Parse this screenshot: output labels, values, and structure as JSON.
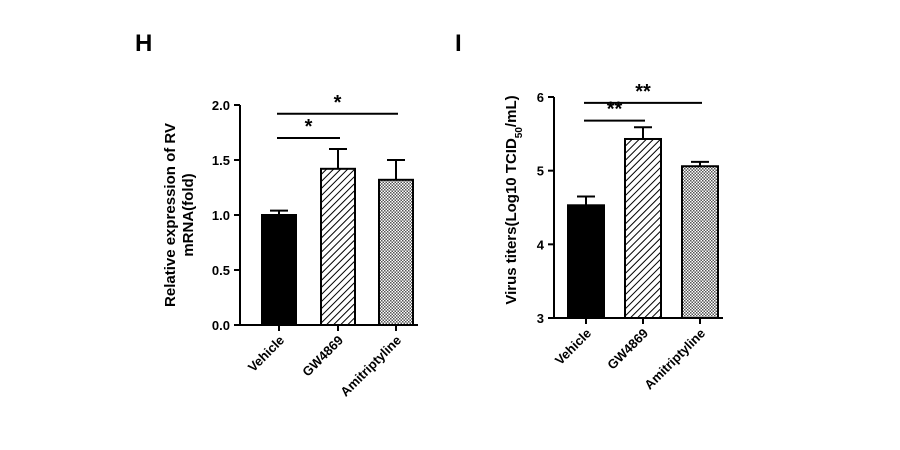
{
  "chart_data": [
    {
      "panel": "H",
      "type": "bar",
      "categories": [
        "Vehicle",
        "GW4869",
        "Amitriptyline"
      ],
      "values": [
        1.0,
        1.42,
        1.32
      ],
      "errors": [
        0.04,
        0.18,
        0.18
      ],
      "ylabel_lines": [
        "Relative expression of RV",
        "mRNA(fold)"
      ],
      "ylim": [
        0,
        2.0
      ],
      "yticks": [
        0.0,
        0.5,
        1.0,
        1.5,
        2.0
      ],
      "ytick_labels": [
        "0.0",
        "0.5",
        "1.0",
        "1.5",
        "2.0"
      ],
      "fills": [
        "solid",
        "diagonal-hatch",
        "crosshatch"
      ],
      "significance": [
        {
          "from": 0,
          "to": 1,
          "label": "*",
          "y": 1.7
        },
        {
          "from": 0,
          "to": 2,
          "label": "*",
          "y": 1.92
        }
      ],
      "grid": false
    },
    {
      "panel": "I",
      "type": "bar",
      "categories": [
        "Vehicle",
        "GW4869",
        "Amitriptyline"
      ],
      "values": [
        4.53,
        5.43,
        5.06
      ],
      "errors": [
        0.12,
        0.16,
        0.06
      ],
      "ylabel_parts": [
        "Virus titers(Log10 TCID",
        "50",
        "/mL)"
      ],
      "ylim": [
        3,
        6
      ],
      "yticks": [
        3,
        4,
        5,
        6
      ],
      "ytick_labels": [
        "3",
        "4",
        "5",
        "6"
      ],
      "fills": [
        "solid",
        "diagonal-hatch",
        "crosshatch"
      ],
      "significance": [
        {
          "from": 0,
          "to": 1,
          "label": "**",
          "y": 5.68
        },
        {
          "from": 0,
          "to": 2,
          "label": "**",
          "y": 5.92
        }
      ],
      "grid": false
    }
  ]
}
